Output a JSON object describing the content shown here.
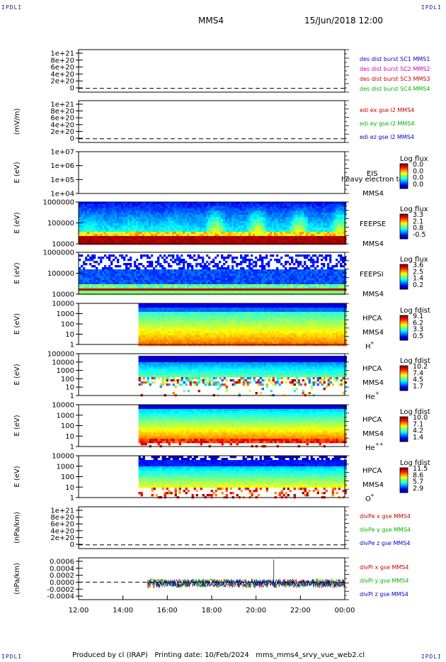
{
  "header": {
    "corner_label": "IPDLI",
    "spacecraft": "MMS4",
    "datetime": "15/Jun/2018 12:00"
  },
  "footer": {
    "text": "Produced by cl (IRAP)   Printing date: 10/Feb/2024   mms_mms4_srvy_vue_web2.cl"
  },
  "colors": {
    "series_blue": "#0000c8",
    "series_magenta": "#c800c8",
    "series_red": "#c80000",
    "series_green": "#00b400"
  },
  "x_axis": {
    "ticks": [
      "12:00",
      "14:00",
      "16:00",
      "18:00",
      "20:00",
      "22:00",
      "00:00"
    ],
    "range_hours": [
      12,
      24
    ]
  },
  "chart_data": [
    {
      "type": "line",
      "ylabel": "",
      "yticks": [
        "1e+21",
        "8e+20",
        "6e+20",
        "4e+20",
        "2e+20",
        "0"
      ],
      "legend": [
        {
          "text": "des dist burst SC1 MMS1",
          "color": "#0000c8"
        },
        {
          "text": "des dist burst SC2 MMS2",
          "color": "#c800c8"
        },
        {
          "text": "des dist burst SC3 MMS3",
          "color": "#c80000"
        },
        {
          "text": "des dist burst SC4 MMS4",
          "color": "#00b400"
        }
      ],
      "zero_line": true,
      "x": [],
      "values": []
    },
    {
      "type": "line",
      "ylabel": "(mV/m)",
      "yticks": [
        "1e+21",
        "8e+20",
        "6e+20",
        "4e+20",
        "2e+20",
        "0"
      ],
      "legend": [
        {
          "text": "edi ex gse l2 MMS4",
          "color": "#c80000"
        },
        {
          "text": "edi ey gse l2 MMS4",
          "color": "#00b400"
        },
        {
          "text": "edi ez gse l2 MMS4",
          "color": "#0000c8"
        }
      ],
      "zero_line": true,
      "x": [],
      "values": []
    },
    {
      "type": "heatmap",
      "ylabel": "E (eV)",
      "yticks": [
        "1e+07",
        "1e+06",
        "1e+05",
        "1e+04"
      ],
      "instrument": [
        "EIS",
        "heavy electron to",
        "MMS4"
      ],
      "colorbar": {
        "label": "Log flux",
        "ticks": [
          "0.0",
          "0.0",
          "0.0",
          "0.0"
        ]
      },
      "fill": "none"
    },
    {
      "type": "heatmap",
      "ylabel": "E (eV)",
      "yticks": [
        "1000000",
        "100000",
        "10000"
      ],
      "instrument": [
        "FEEPSE",
        "MMS4"
      ],
      "colorbar": {
        "label": "Log flux",
        "ticks": [
          "3.3",
          "2.1",
          "0.8",
          "-0.5"
        ]
      },
      "fill": "feepse"
    },
    {
      "type": "heatmap",
      "ylabel": "E (eV)",
      "yticks": [
        "1000000",
        "100000",
        "10000"
      ],
      "instrument": [
        "FEEPSI",
        "MMS4"
      ],
      "colorbar": {
        "label": "Log flux",
        "ticks": [
          "3.6",
          "2.5",
          "1.4",
          "0.2"
        ]
      },
      "fill": "feepsi"
    },
    {
      "type": "heatmap",
      "ylabel": "E (eV)",
      "yticks": [
        "10000",
        "1000",
        "100",
        "10",
        "1"
      ],
      "instrument": [
        "HPCA",
        "MMS4",
        "H",
        "+"
      ],
      "colorbar": {
        "label": "Log fdist",
        "ticks": [
          "9.1",
          "6.2",
          "3.3",
          "0.5"
        ]
      },
      "fill": "hpca_h",
      "start_hour": 14.7
    },
    {
      "type": "heatmap",
      "ylabel": "E (eV)",
      "yticks": [
        "100000",
        "10000",
        "1000",
        "100",
        "10",
        "1"
      ],
      "instrument": [
        "HPCA",
        "MMS4",
        "He",
        "+"
      ],
      "colorbar": {
        "label": "Log fdist",
        "ticks": [
          "10.2",
          "7.4",
          "4.5",
          "1.7"
        ]
      },
      "fill": "hpca_he",
      "start_hour": 14.7
    },
    {
      "type": "heatmap",
      "ylabel": "E (eV)",
      "yticks": [
        "10000",
        "1000",
        "100",
        "10",
        "1"
      ],
      "instrument": [
        "HPCA",
        "MMS4",
        "He",
        "++"
      ],
      "colorbar": {
        "label": "Log fdist",
        "ticks": [
          "10.0",
          "7.1",
          "4.2",
          "1.4"
        ]
      },
      "fill": "hpca_hepp",
      "start_hour": 14.7
    },
    {
      "type": "heatmap",
      "ylabel": "E (eV)",
      "yticks": [
        "10000",
        "1000",
        "100",
        "10",
        "1"
      ],
      "instrument": [
        "HPCA",
        "MMS4",
        "O",
        "+"
      ],
      "colorbar": {
        "label": "Log fdist",
        "ticks": [
          "11.5",
          "8.6",
          "5.7",
          "2.9"
        ]
      },
      "fill": "hpca_o",
      "start_hour": 14.7
    },
    {
      "type": "line",
      "ylabel": "(nPa/km)",
      "yticks": [
        "1e+21",
        "8e+20",
        "6e+20",
        "4e+20",
        "2e+20",
        "0"
      ],
      "legend": [
        {
          "text": "divPe x gse MMS4",
          "color": "#c80000"
        },
        {
          "text": "divPe y gse MMS4",
          "color": "#00b400"
        },
        {
          "text": "divPe z gse MMS4",
          "color": "#0000c8"
        }
      ],
      "zero_line": true,
      "x": [],
      "values": []
    },
    {
      "type": "line",
      "ylabel": "(nPa/km)",
      "yticks": [
        "0.0006",
        "0.0004",
        "0.0002",
        "0.0000",
        "-0.0002",
        "-0.0004"
      ],
      "ylim": [
        -0.0005,
        0.0007
      ],
      "legend": [
        {
          "text": "divPi x gse MMS4",
          "color": "#c80000"
        },
        {
          "text": "divPi y gse MMS4",
          "color": "#00b400"
        },
        {
          "text": "divPi z gse MMS4",
          "color": "#0000c8"
        }
      ],
      "zero_line": true,
      "start_hour": 15.1,
      "noise_amplitude": 0.00012
    }
  ]
}
